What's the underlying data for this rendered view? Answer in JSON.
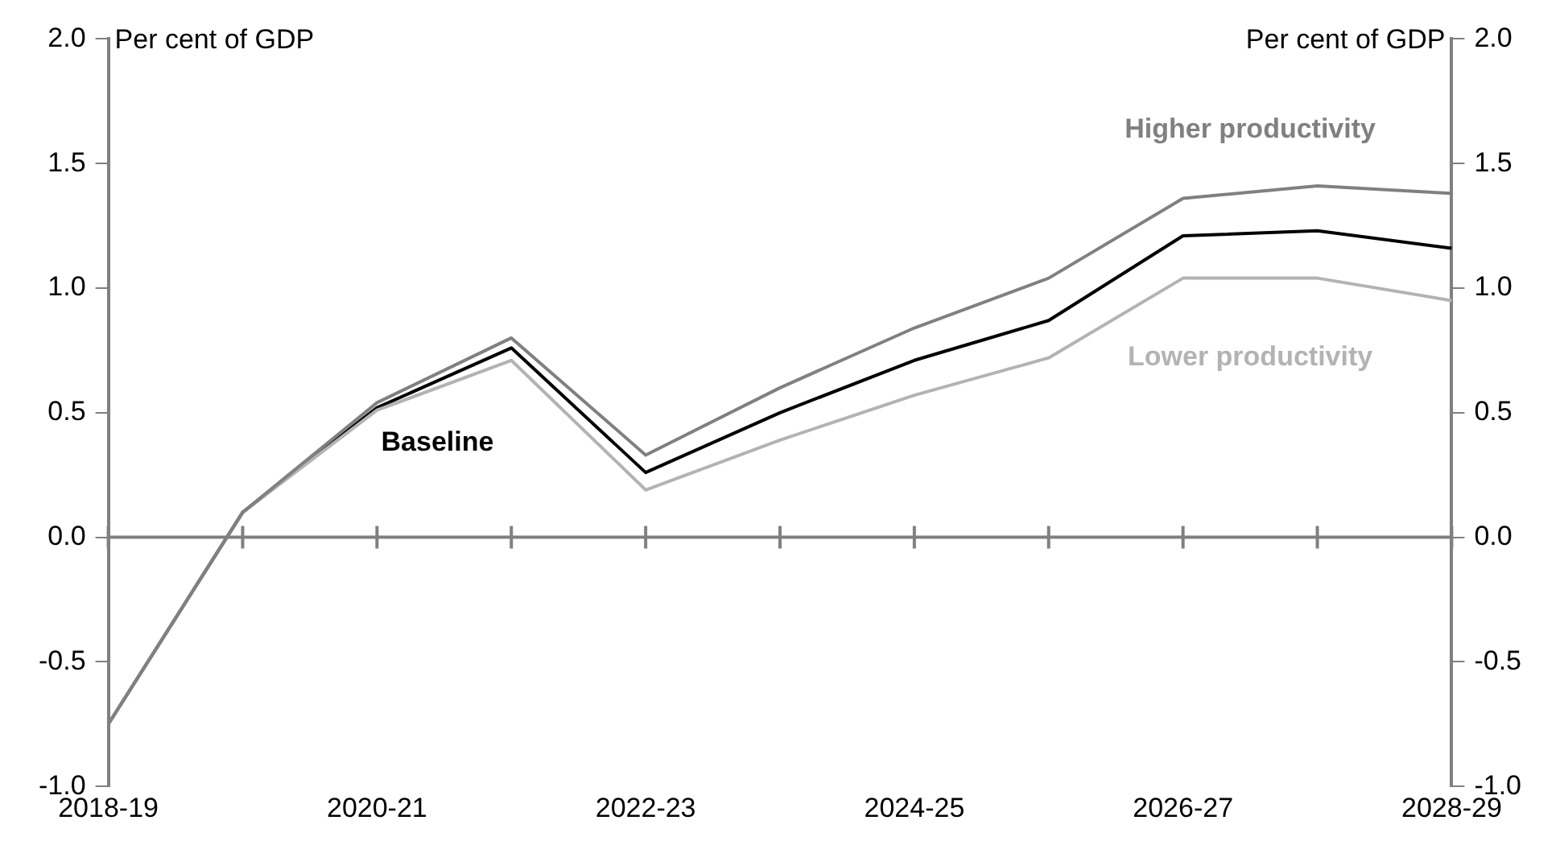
{
  "chart_data": {
    "type": "line",
    "ylabel": "Per cent of GDP",
    "y2label": "Per cent of GDP",
    "categories": [
      "2018-19",
      null,
      "2020-21",
      null,
      "2022-23",
      null,
      "2024-25",
      null,
      "2026-27",
      null,
      "2028-29"
    ],
    "series": [
      {
        "name": "Higher productivity",
        "color": "#808080",
        "values": [
          -0.75,
          0.1,
          0.54,
          0.8,
          0.33,
          0.6,
          0.84,
          1.04,
          1.36,
          1.41,
          1.38
        ]
      },
      {
        "name": "Lower productivity",
        "color": "#b3b3b3",
        "values": [
          -0.75,
          0.1,
          0.51,
          0.71,
          0.19,
          0.39,
          0.57,
          0.72,
          1.04,
          1.04,
          0.95
        ]
      },
      {
        "name": "Baseline",
        "color": "#000000",
        "values": [
          -0.75,
          0.1,
          0.52,
          0.76,
          0.26,
          0.5,
          0.71,
          0.87,
          1.21,
          1.23,
          1.16
        ]
      }
    ],
    "ylim": [
      -1,
      2
    ],
    "yticks": [
      {
        "value": -1,
        "label": "-1.0"
      },
      {
        "value": -0.5,
        "label": "-0.5"
      },
      {
        "value": 0,
        "label": "0.0"
      },
      {
        "value": 0.5,
        "label": "0.5"
      },
      {
        "value": 1,
        "label": "1.0"
      },
      {
        "value": 1.5,
        "label": "1.5"
      },
      {
        "value": 2,
        "label": "2.0"
      }
    ],
    "y2lim": [
      -1,
      2
    ],
    "y2ticks": [
      {
        "value": -1,
        "label": "-1.0"
      },
      {
        "value": -0.5,
        "label": "-0.5"
      },
      {
        "value": 0,
        "label": "0.0"
      },
      {
        "value": 0.5,
        "label": "0.5"
      },
      {
        "value": 1,
        "label": "1.0"
      },
      {
        "value": 1.5,
        "label": "1.5"
      },
      {
        "value": 2,
        "label": "2.0"
      }
    ],
    "ref_lines": [
      {
        "axis": "y",
        "value": 0,
        "color": "#808080"
      }
    ],
    "grid": false,
    "legend": false,
    "marker": "none",
    "line_style": "solid"
  }
}
